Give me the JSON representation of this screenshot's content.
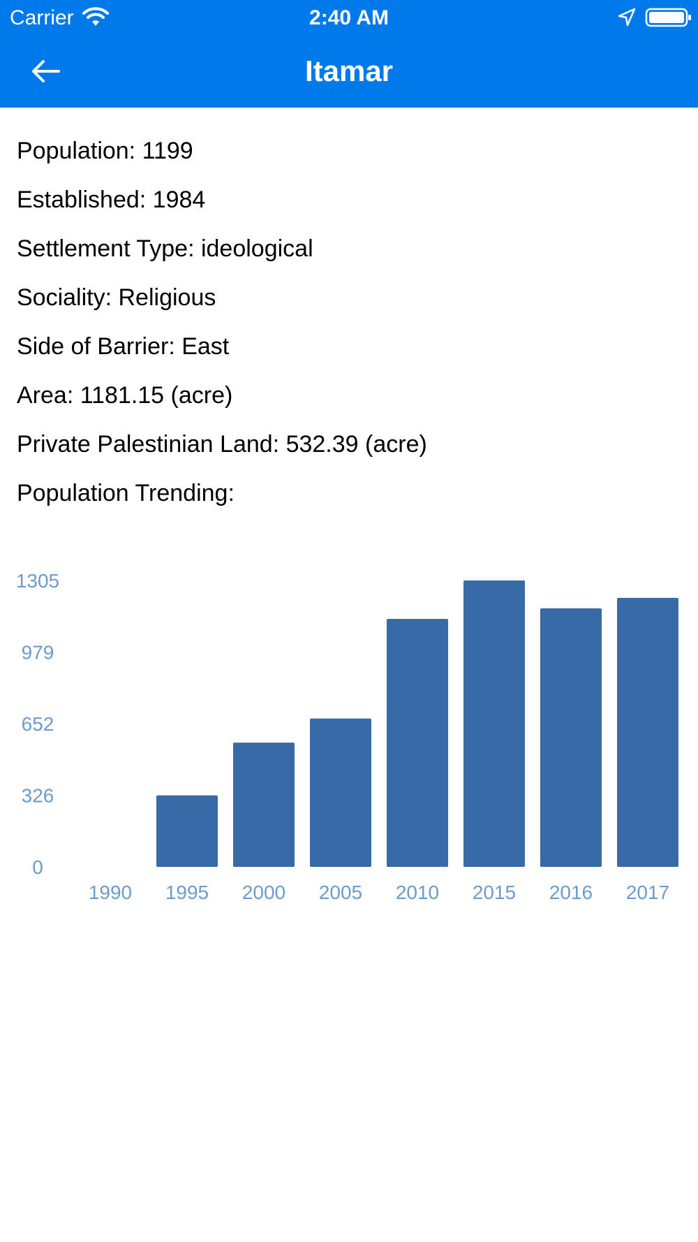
{
  "status_bar": {
    "carrier": "Carrier",
    "time": "2:40 AM",
    "icons": [
      "wifi-icon",
      "location-arrow-icon",
      "battery-icon"
    ]
  },
  "nav": {
    "title": "Itamar",
    "back_icon": "arrow-left-icon",
    "color": "#007aeb"
  },
  "details": [
    "Population: 1199",
    "Established: 1984",
    "Settlement Type: ideological",
    "Sociality: Religious",
    "Side of Barrier: East",
    "Area: 1181.15 (acre)",
    "Private Palestinian Land: 532.39 (acre)",
    "Population Trending:"
  ],
  "chart_data": {
    "type": "bar",
    "title": "",
    "xlabel": "",
    "ylabel": "",
    "categories": [
      "1990",
      "1995",
      "2000",
      "2005",
      "2010",
      "2015",
      "2016",
      "2017"
    ],
    "values": [
      0,
      326,
      566,
      676,
      1130,
      1305,
      1178,
      1226
    ],
    "y_ticks": [
      "0",
      "326",
      "652",
      "979",
      "1305"
    ],
    "ylim": [
      0,
      1305
    ],
    "grid": false,
    "bar_color": "#386aa8",
    "label_color": "#6b9ccc"
  }
}
